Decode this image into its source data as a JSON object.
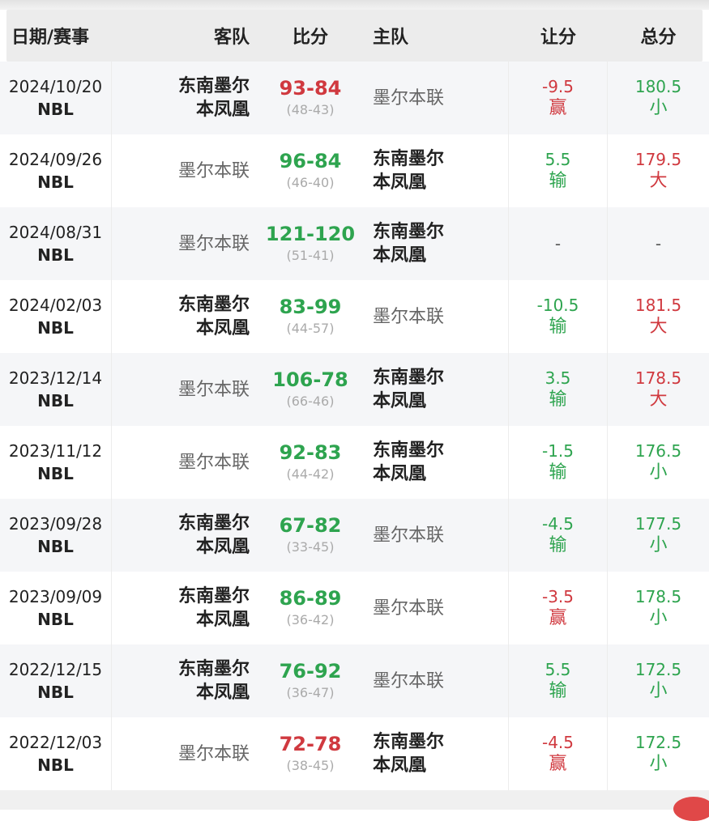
{
  "headers": {
    "date": "日期/赛事",
    "away": "客队",
    "score": "比分",
    "home": "主队",
    "handicap": "让分",
    "total": "总分"
  },
  "colors": {
    "win": "#d0393f",
    "lose": "#2ea44f"
  },
  "rows": [
    {
      "date": "2024/10/20",
      "league": "NBL",
      "away": [
        "东南墨尔",
        "本凤凰"
      ],
      "away_bold": true,
      "score": "93-84",
      "score_color": "red",
      "half": "(48-43)",
      "home": [
        "墨尔本联"
      ],
      "home_bold": false,
      "handicap": "-9.5",
      "handicap_result": "赢",
      "handicap_color": "red",
      "total": "180.5",
      "total_result": "小",
      "total_color": "green"
    },
    {
      "date": "2024/09/26",
      "league": "NBL",
      "away": [
        "墨尔本联"
      ],
      "away_bold": false,
      "score": "96-84",
      "score_color": "green",
      "half": "(46-40)",
      "home": [
        "东南墨尔",
        "本凤凰"
      ],
      "home_bold": true,
      "handicap": "5.5",
      "handicap_result": "输",
      "handicap_color": "green",
      "total": "179.5",
      "total_result": "大",
      "total_color": "red"
    },
    {
      "date": "2024/08/31",
      "league": "NBL",
      "away": [
        "墨尔本联"
      ],
      "away_bold": false,
      "score": "121-120",
      "score_color": "green",
      "half": "(51-41)",
      "home": [
        "东南墨尔",
        "本凤凰"
      ],
      "home_bold": true,
      "handicap": "-",
      "handicap_result": "",
      "handicap_color": "gray",
      "total": "-",
      "total_result": "",
      "total_color": "gray"
    },
    {
      "date": "2024/02/03",
      "league": "NBL",
      "away": [
        "东南墨尔",
        "本凤凰"
      ],
      "away_bold": true,
      "score": "83-99",
      "score_color": "green",
      "half": "(44-57)",
      "home": [
        "墨尔本联"
      ],
      "home_bold": false,
      "handicap": "-10.5",
      "handicap_result": "输",
      "handicap_color": "green",
      "total": "181.5",
      "total_result": "大",
      "total_color": "red"
    },
    {
      "date": "2023/12/14",
      "league": "NBL",
      "away": [
        "墨尔本联"
      ],
      "away_bold": false,
      "score": "106-78",
      "score_color": "green",
      "half": "(66-46)",
      "home": [
        "东南墨尔",
        "本凤凰"
      ],
      "home_bold": true,
      "handicap": "3.5",
      "handicap_result": "输",
      "handicap_color": "green",
      "total": "178.5",
      "total_result": "大",
      "total_color": "red"
    },
    {
      "date": "2023/11/12",
      "league": "NBL",
      "away": [
        "墨尔本联"
      ],
      "away_bold": false,
      "score": "92-83",
      "score_color": "green",
      "half": "(44-42)",
      "home": [
        "东南墨尔",
        "本凤凰"
      ],
      "home_bold": true,
      "handicap": "-1.5",
      "handicap_result": "输",
      "handicap_color": "green",
      "total": "176.5",
      "total_result": "小",
      "total_color": "green"
    },
    {
      "date": "2023/09/28",
      "league": "NBL",
      "away": [
        "东南墨尔",
        "本凤凰"
      ],
      "away_bold": true,
      "score": "67-82",
      "score_color": "green",
      "half": "(33-45)",
      "home": [
        "墨尔本联"
      ],
      "home_bold": false,
      "handicap": "-4.5",
      "handicap_result": "输",
      "handicap_color": "green",
      "total": "177.5",
      "total_result": "小",
      "total_color": "green"
    },
    {
      "date": "2023/09/09",
      "league": "NBL",
      "away": [
        "东南墨尔",
        "本凤凰"
      ],
      "away_bold": true,
      "score": "86-89",
      "score_color": "green",
      "half": "(36-42)",
      "home": [
        "墨尔本联"
      ],
      "home_bold": false,
      "handicap": "-3.5",
      "handicap_result": "赢",
      "handicap_color": "red",
      "total": "178.5",
      "total_result": "小",
      "total_color": "green"
    },
    {
      "date": "2022/12/15",
      "league": "NBL",
      "away": [
        "东南墨尔",
        "本凤凰"
      ],
      "away_bold": true,
      "score": "76-92",
      "score_color": "green",
      "half": "(36-47)",
      "home": [
        "墨尔本联"
      ],
      "home_bold": false,
      "handicap": "5.5",
      "handicap_result": "输",
      "handicap_color": "green",
      "total": "172.5",
      "total_result": "小",
      "total_color": "green"
    },
    {
      "date": "2022/12/03",
      "league": "NBL",
      "away": [
        "墨尔本联"
      ],
      "away_bold": false,
      "score": "72-78",
      "score_color": "red",
      "half": "(38-45)",
      "home": [
        "东南墨尔",
        "本凤凰"
      ],
      "home_bold": true,
      "handicap": "-4.5",
      "handicap_result": "赢",
      "handicap_color": "red",
      "total": "172.5",
      "total_result": "小",
      "total_color": "green"
    }
  ]
}
